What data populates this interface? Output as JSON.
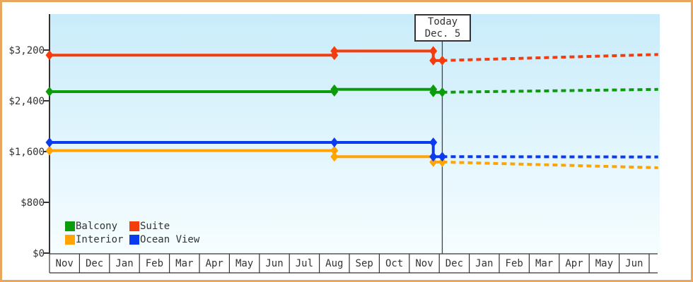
{
  "page": {
    "border_color": "#e8a75c",
    "background_color": "#ffffff",
    "plot_gradient_top": "#c9ecfa",
    "plot_gradient_bottom": "#f6fdff",
    "axis_color": "#333333",
    "text_color": "#333333"
  },
  "today_box": {
    "line1": "Today",
    "line2": "Dec. 5"
  },
  "chart_data": {
    "type": "line",
    "title": "",
    "xlabel": "",
    "ylabel": "",
    "ylim": [
      0,
      3200
    ],
    "grid": false,
    "legend_position": "bottom-left",
    "y_ticks": [
      {
        "value": 3200,
        "label": "$3,200"
      },
      {
        "value": 2400,
        "label": "$2,400"
      },
      {
        "value": 1600,
        "label": "$1,600"
      },
      {
        "value": 800,
        "label": "$800"
      },
      {
        "value": 0,
        "label": "$0"
      }
    ],
    "x_months": [
      "Nov",
      "Dec",
      "Jan",
      "Feb",
      "Mar",
      "Apr",
      "May",
      "Jun",
      "Jul",
      "Aug",
      "Sep",
      "Oct",
      "Nov",
      "Dec",
      "Jan",
      "Feb",
      "Mar",
      "Apr",
      "May",
      "Jun"
    ],
    "today": {
      "label": "Today",
      "date": "Dec. 5",
      "x_month_index": 13.1
    },
    "series": [
      {
        "name": "Balcony",
        "color": "#0b9b0b",
        "solid_points": [
          [
            0,
            2545
          ],
          [
            9.5,
            2545
          ],
          [
            9.5,
            2580
          ],
          [
            12.8,
            2580
          ],
          [
            12.8,
            2535
          ],
          [
            13.1,
            2535
          ]
        ],
        "forecast_points": [
          [
            13.1,
            2535
          ],
          [
            20.3,
            2580
          ]
        ]
      },
      {
        "name": "Suite",
        "color": "#f53c0c",
        "solid_points": [
          [
            0,
            3120
          ],
          [
            9.5,
            3120
          ],
          [
            9.5,
            3185
          ],
          [
            12.8,
            3185
          ],
          [
            12.8,
            3035
          ],
          [
            13.1,
            3035
          ]
        ],
        "forecast_points": [
          [
            13.1,
            3035
          ],
          [
            20.3,
            3130
          ]
        ]
      },
      {
        "name": "Interior",
        "color": "#ffa402",
        "solid_points": [
          [
            0,
            1615
          ],
          [
            9.5,
            1615
          ],
          [
            9.5,
            1520
          ],
          [
            12.8,
            1520
          ],
          [
            12.8,
            1435
          ],
          [
            13.1,
            1435
          ]
        ],
        "forecast_points": [
          [
            13.1,
            1435
          ],
          [
            20.3,
            1345
          ]
        ]
      },
      {
        "name": "Ocean View",
        "color": "#0b3bee",
        "solid_points": [
          [
            0,
            1745
          ],
          [
            9.5,
            1745
          ],
          [
            12.8,
            1745
          ],
          [
            12.8,
            1520
          ],
          [
            13.1,
            1520
          ]
        ],
        "forecast_points": [
          [
            13.1,
            1520
          ],
          [
            20.3,
            1515
          ]
        ]
      }
    ]
  }
}
